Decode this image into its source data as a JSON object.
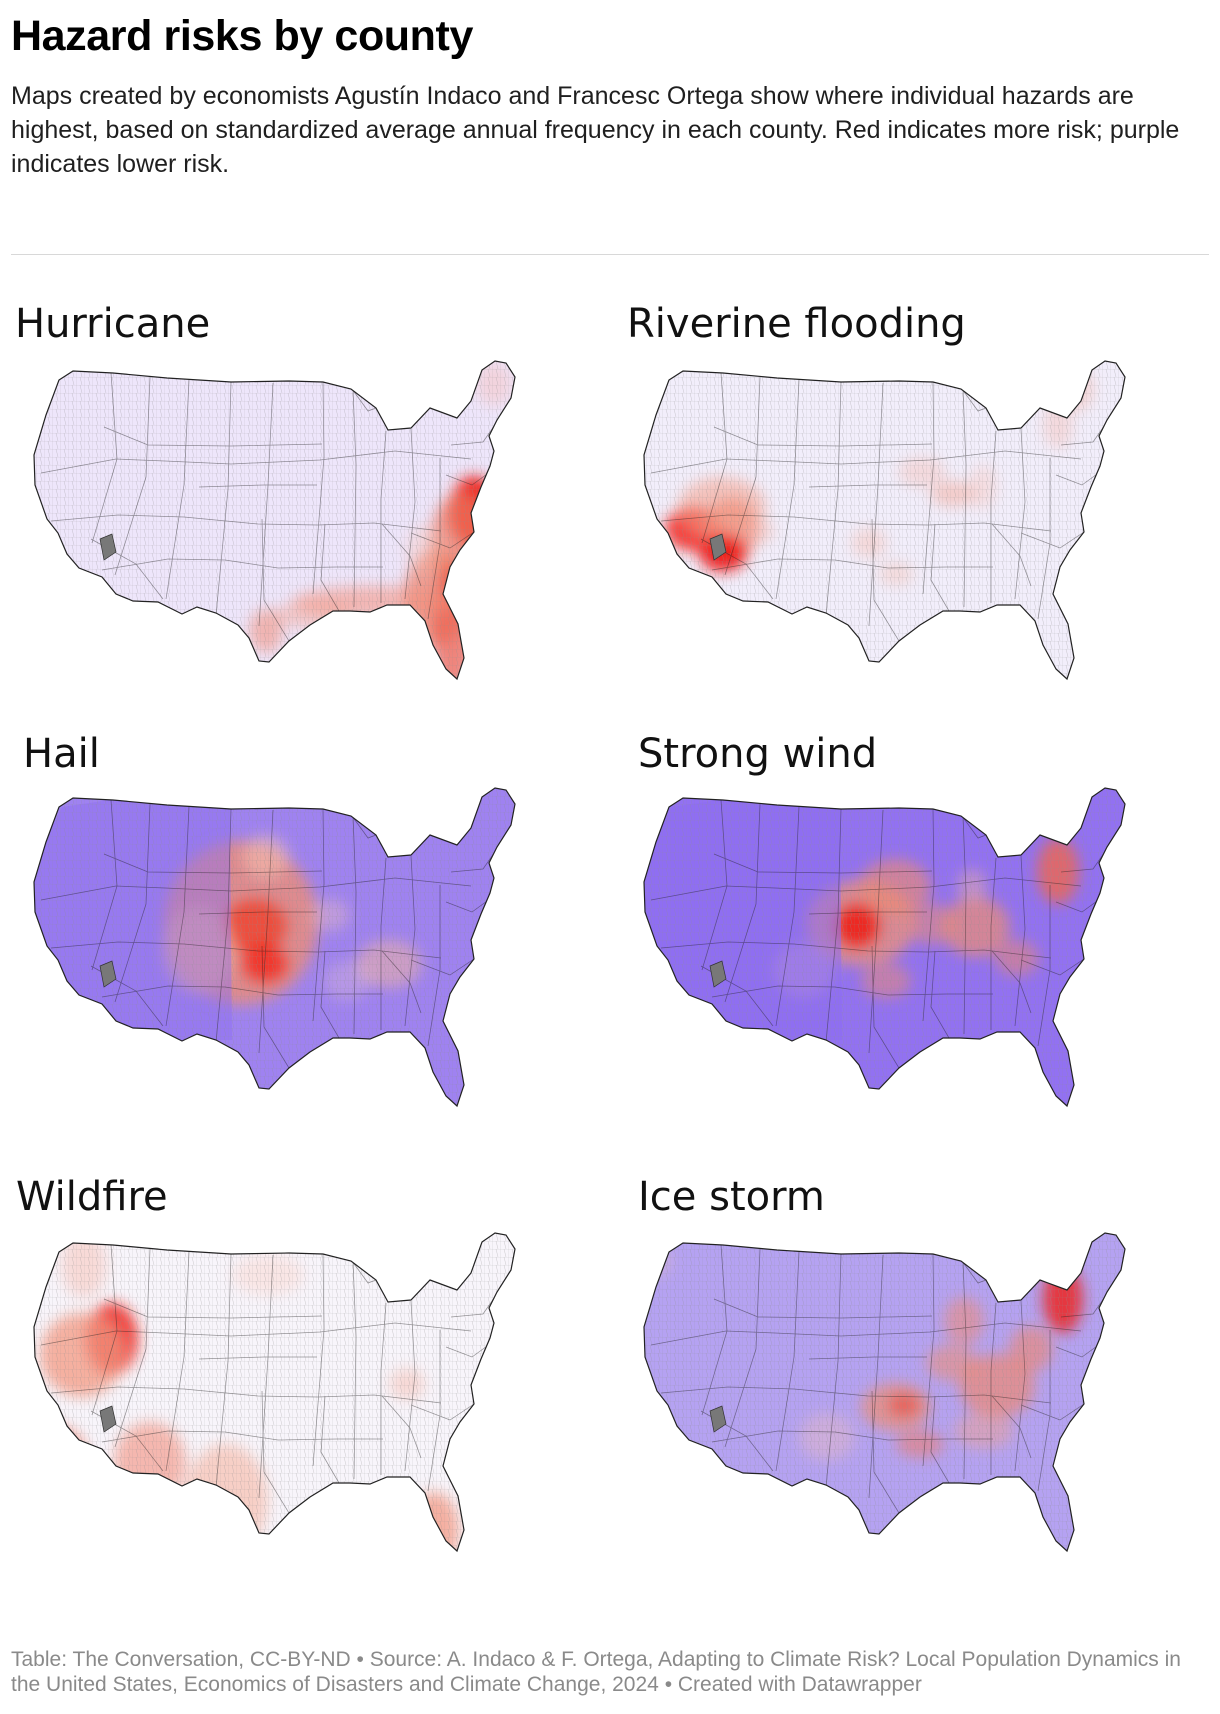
{
  "header": {
    "title": "Hazard risks by county",
    "description": "Maps created by economists Agustín Indaco and Francesc Ortega show where individual hazards are highest, based on standardized average annual frequency in each county. Red indicates more risk; purple indicates lower risk."
  },
  "colors": {
    "background": "#ffffff",
    "low_risk_purple": "#8f6df1",
    "light_purple": "#eee6fb",
    "neutral": "#ffffff",
    "medium_risk_red": "#ef8d71",
    "high_risk_red": "#f20f10",
    "missing_gray": "#787878",
    "county_border": "#8d8d8d",
    "state_border": "#1f1f1f"
  },
  "maps": [
    {
      "title": "Hurricane",
      "base_color": "#eee6fb",
      "hotspots": [
        "Atlantic coast",
        "Florida",
        "Gulf Coast"
      ]
    },
    {
      "title": "Riverine flooding",
      "base_color": "#f2eefb",
      "hotspots": [
        "southern California",
        "Arizona",
        "Mississippi and Ohio valleys",
        "Texas"
      ]
    },
    {
      "title": "Hail",
      "base_color": "#9f82f1",
      "hotspots": [
        "Great Plains",
        "central Texas",
        "Southeast"
      ]
    },
    {
      "title": "Strong wind",
      "base_color": "#9271f2",
      "hotspots": [
        "central Plains",
        "Midwest",
        "Appalachians",
        "Northeast"
      ]
    },
    {
      "title": "Wildfire",
      "base_color": "#f8f5fb",
      "hotspots": [
        "Great Basin",
        "California",
        "Southwest",
        "Florida"
      ]
    },
    {
      "title": "Ice storm",
      "base_color": "#b5a2f2",
      "hotspots": [
        "southern Plains",
        "Midwest",
        "Appalachians",
        "Northeast"
      ]
    }
  ],
  "footer": {
    "table": "Table: The Conversation, CC-BY-ND",
    "source": "Source: A. Indaco & F. Ortega, Adapting to Climate Risk? Local Population Dynamics in the United States, Economics of Disasters and Climate Change, 2024",
    "created": "Created with Datawrapper",
    "separator": "•"
  }
}
